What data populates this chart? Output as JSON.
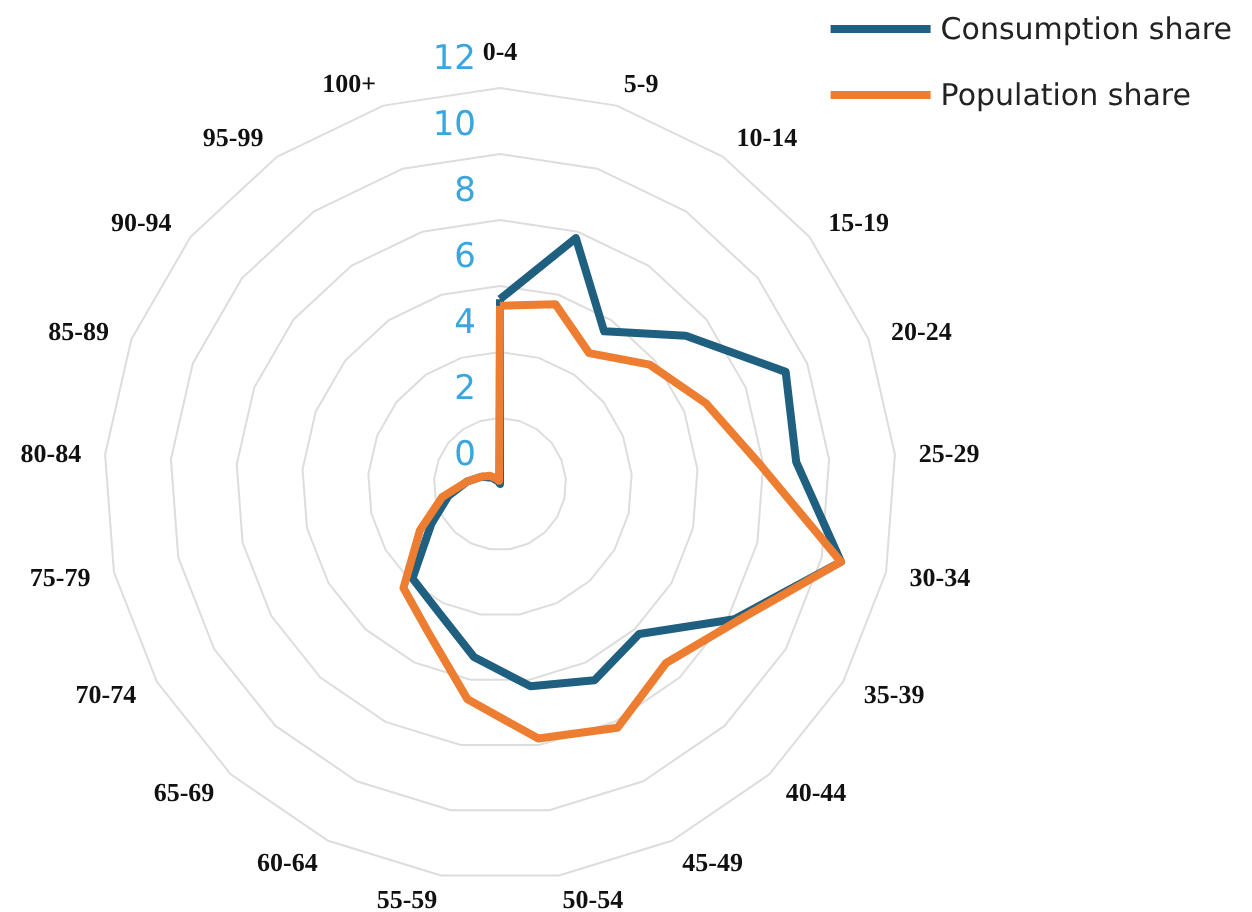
{
  "chart_data": {
    "type": "radar",
    "categories": [
      "0-4",
      "5-9",
      "10-14",
      "15-19",
      "20-24",
      "25-29",
      "30-34",
      "35-39",
      "40-44",
      "45-49",
      "50-54",
      "55-59",
      "60-64",
      "65-69",
      "70-74",
      "75-79",
      "80-84",
      "85-89",
      "90-94",
      "95-99",
      "100+"
    ],
    "series": [
      {
        "name": "Consumption share",
        "color": "#1f5f7f",
        "values": [
          5.6,
          7.8,
          5.6,
          7.2,
          9.3,
          9.0,
          10.6,
          8.2,
          6.2,
          6.6,
          6.2,
          5.3,
          4.3,
          3.9,
          2.4,
          1.6,
          1.0,
          0.6,
          0.3,
          0.1,
          0.0
        ]
      },
      {
        "name": "Population share",
        "color": "#ed7d31",
        "values": [
          5.4,
          5.7,
          4.8,
          5.8,
          6.7,
          7.9,
          10.6,
          8.3,
          7.4,
          8.2,
          7.8,
          6.6,
          5.0,
          4.3,
          2.8,
          1.8,
          1.0,
          0.6,
          0.4,
          0.2,
          0.1
        ]
      }
    ],
    "ylim": [
      0,
      12
    ],
    "yticks": [
      0,
      2,
      4,
      6,
      8,
      10,
      12
    ],
    "grid": true,
    "legend": "top right",
    "marker": "none",
    "line_style": "solid"
  }
}
